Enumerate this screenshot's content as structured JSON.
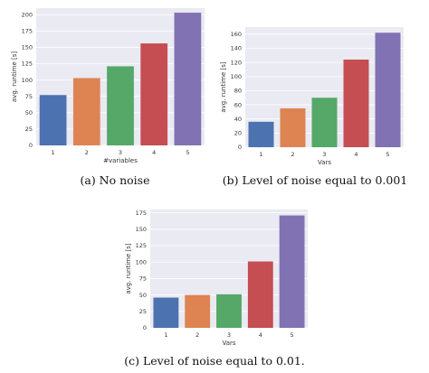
{
  "chart_data": [
    {
      "type": "bar",
      "categories": [
        "1",
        "2",
        "3",
        "4",
        "5"
      ],
      "values": [
        77,
        103,
        121,
        156,
        203
      ],
      "ylim": [
        0,
        210
      ],
      "yticks": [
        0,
        25,
        50,
        75,
        100,
        125,
        150,
        175,
        200
      ],
      "xlabel": "#variables",
      "ylabel": "avg. runtime [s]",
      "caption": "(a) No noise",
      "grid": true
    },
    {
      "type": "bar",
      "categories": [
        "1",
        "2",
        "3",
        "4",
        "5"
      ],
      "values": [
        36,
        55,
        70,
        124,
        162
      ],
      "ylim": [
        0,
        170
      ],
      "yticks": [
        0,
        20,
        40,
        60,
        80,
        100,
        120,
        140,
        160
      ],
      "xlabel": "Vars",
      "ylabel": "avg. runtime [s]",
      "caption": "(b) Level of noise equal to 0.001",
      "grid": true
    },
    {
      "type": "bar",
      "categories": [
        "1",
        "2",
        "3",
        "4",
        "5"
      ],
      "values": [
        46,
        50,
        51,
        101,
        171
      ],
      "ylim": [
        0,
        180
      ],
      "yticks": [
        0,
        25,
        50,
        75,
        100,
        125,
        150,
        175
      ],
      "xlabel": "Vars",
      "ylabel": "avg. runtime [s]",
      "caption": "(c) Level of noise equal to 0.01.",
      "grid": true
    }
  ],
  "colors": {
    "bars": [
      "#4c72b0",
      "#dd8452",
      "#55a868",
      "#c44e52",
      "#8172b3"
    ],
    "plot_background": "#eaeaf2",
    "grid": "#ffffff"
  }
}
